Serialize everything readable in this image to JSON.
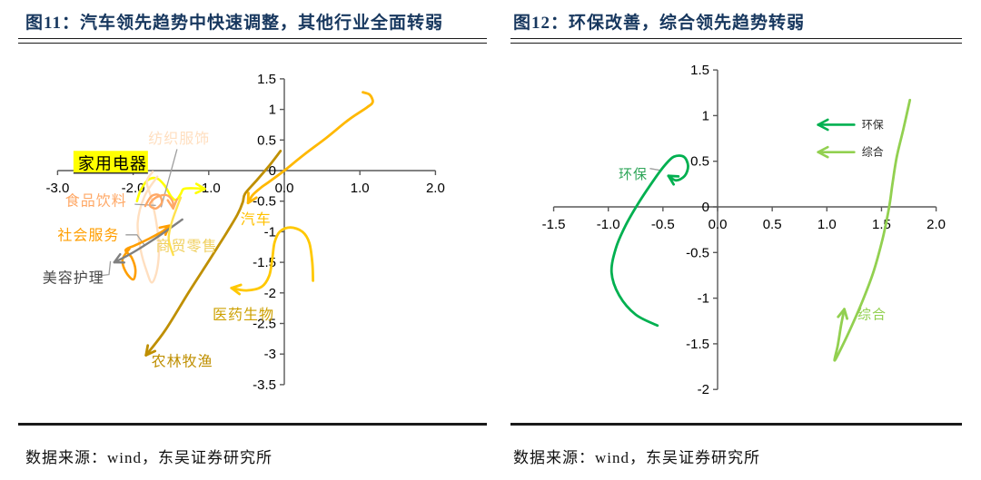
{
  "panels": [
    {
      "title": "图11：汽车领先趋势中快速调整，其他行业全面转弱",
      "source_note": "数据来源：wind，东吴证券研究所"
    },
    {
      "title": "图12：环保改善，综合领先趋势转弱",
      "source_note": "数据来源：wind，东吴证券研究所"
    }
  ],
  "chart_data": [
    {
      "type": "line",
      "title": "图11：汽车领先趋势中快速调整，其他行业全面转弱",
      "xlabel": "",
      "ylabel": "",
      "xlim": [
        -3.0,
        2.0
      ],
      "ylim": [
        -3.5,
        1.5
      ],
      "grid": false,
      "xtick_vals": [
        -3,
        -2,
        -1,
        0,
        1,
        2
      ],
      "xtick_labels": [
        "-3.0",
        "-2.0",
        "-1.0",
        "0.0",
        "1.0",
        "2.0"
      ],
      "ytick_vals": [
        1.5,
        1,
        0.5,
        0,
        -0.5,
        -1,
        -1.5,
        -2,
        -2.5,
        -3,
        -3.5
      ],
      "ytick_labels": [
        "1.5",
        "1",
        "0.5",
        "0",
        "-0.5",
        "-1",
        "-1.5",
        "-2",
        "-2.5",
        "-3",
        "-3.5"
      ],
      "series": [
        {
          "name": "汽车",
          "color": "#FFB800",
          "width": 2.8,
          "arrow": true,
          "points": [
            [
              1.04,
              1.28
            ],
            [
              1.13,
              1.24
            ],
            [
              1.17,
              1.12
            ],
            [
              1.09,
              1.03
            ],
            [
              0.85,
              0.83
            ],
            [
              0.55,
              0.53
            ],
            [
              0.25,
              0.25
            ],
            [
              0.0,
              0.0
            ],
            [
              -0.22,
              -0.2
            ],
            [
              -0.3,
              -0.27
            ],
            [
              -0.42,
              -0.4
            ],
            [
              -0.48,
              -0.53
            ]
          ],
          "label": {
            "text": "汽车",
            "x": -0.58,
            "y": -0.8,
            "color": "#FFC000",
            "size": 16
          }
        },
        {
          "name": "农林牧渔",
          "color": "#BF8F00",
          "width": 2.8,
          "arrow": true,
          "points": [
            [
              -0.05,
              0.32
            ],
            [
              -0.2,
              0.08
            ],
            [
              -0.38,
              -0.18
            ],
            [
              -0.52,
              -0.38
            ],
            [
              -0.55,
              -0.52
            ],
            [
              -0.62,
              -0.72
            ],
            [
              -0.78,
              -1.05
            ],
            [
              -1.0,
              -1.48
            ],
            [
              -1.28,
              -2.02
            ],
            [
              -1.58,
              -2.62
            ],
            [
              -1.83,
              -3.02
            ]
          ],
          "label": {
            "text": "农林牧渔",
            "x": -1.76,
            "y": -3.12,
            "color": "#BF8F00",
            "size": 16
          }
        },
        {
          "name": "医药生物",
          "color": "#FFC800",
          "width": 2.8,
          "arrow": true,
          "points": [
            [
              0.38,
              -1.8
            ],
            [
              0.37,
              -1.5
            ],
            [
              0.33,
              -1.18
            ],
            [
              0.24,
              -1.0
            ],
            [
              0.08,
              -0.93
            ],
            [
              -0.06,
              -1.0
            ],
            [
              -0.13,
              -1.18
            ],
            [
              -0.16,
              -1.45
            ],
            [
              -0.2,
              -1.72
            ],
            [
              -0.3,
              -1.9
            ],
            [
              -0.5,
              -1.96
            ],
            [
              -0.7,
              -1.92
            ]
          ],
          "label": {
            "text": "医药生物",
            "x": -0.95,
            "y": -2.36,
            "color": "#CDA000",
            "size": 16
          }
        },
        {
          "name": "家用电器",
          "color": "#FFFF00",
          "width": 2.6,
          "arrow": true,
          "points": [
            [
              -1.95,
              -0.5
            ],
            [
              -1.9,
              -0.32
            ],
            [
              -1.8,
              -0.15
            ],
            [
              -1.68,
              -0.13
            ],
            [
              -1.58,
              -0.25
            ],
            [
              -1.5,
              -0.42
            ],
            [
              -1.43,
              -0.48
            ],
            [
              -1.37,
              -0.38
            ],
            [
              -1.33,
              -0.3
            ],
            [
              -1.2,
              -0.29
            ],
            [
              -1.05,
              -0.3
            ]
          ],
          "label": {
            "text": "家用电器",
            "x": -2.73,
            "y": 0.1,
            "color": "#000000",
            "size": 18,
            "bg": "#FFFF00",
            "underline": true
          }
        },
        {
          "name": "纺织服饰",
          "color": "#FFDFC0",
          "width": 2.4,
          "arrow": false,
          "points": [
            [
              -1.68,
              -0.1
            ],
            [
              -1.85,
              -0.42
            ],
            [
              -1.94,
              -0.85
            ],
            [
              -1.9,
              -1.3
            ],
            [
              -1.82,
              -1.65
            ],
            [
              -1.75,
              -1.83
            ],
            [
              -1.68,
              -1.6
            ],
            [
              -1.66,
              -1.2
            ],
            [
              -1.7,
              -0.8
            ],
            [
              -1.76,
              -0.45
            ],
            [
              -1.82,
              -0.18
            ],
            [
              -1.74,
              -0.02
            ]
          ],
          "label": {
            "text": "纺织服饰",
            "x": -1.8,
            "y": 0.52,
            "color": "#FFDFC0",
            "size": 16,
            "leader": [
              [
                -1.42,
                0.35
              ],
              [
                -1.63,
                -0.6
              ]
            ]
          }
        },
        {
          "name": "食品饮料",
          "color": "#FFA866",
          "width": 2.4,
          "arrow": true,
          "points": [
            [
              -1.84,
              -0.58
            ],
            [
              -1.76,
              -0.42
            ],
            [
              -1.66,
              -0.4
            ],
            [
              -1.62,
              -0.52
            ],
            [
              -1.7,
              -0.62
            ],
            [
              -1.78,
              -0.56
            ],
            [
              -1.7,
              -0.44
            ],
            [
              -1.56,
              -0.4
            ],
            [
              -1.48,
              -0.5
            ],
            [
              -1.47,
              -0.62
            ]
          ],
          "label": {
            "text": "食品饮料",
            "x": -2.9,
            "y": -0.5,
            "color": "#FFA866",
            "size": 16,
            "leader": [
              [
                -1.98,
                -0.55
              ],
              [
                -1.7,
                -0.57
              ]
            ]
          }
        },
        {
          "name": "社会服务",
          "color": "#FF9E00",
          "width": 2.6,
          "arrow": true,
          "points": [
            [
              -2.05,
              -1.28
            ],
            [
              -2.14,
              -1.45
            ],
            [
              -2.1,
              -1.65
            ],
            [
              -2.0,
              -1.78
            ],
            [
              -1.97,
              -1.62
            ],
            [
              -2.02,
              -1.42
            ],
            [
              -2.1,
              -1.3
            ],
            [
              -1.97,
              -1.22
            ],
            [
              -1.8,
              -1.12
            ],
            [
              -1.62,
              -1.0
            ],
            [
              -1.52,
              -0.9
            ]
          ],
          "label": {
            "text": "社会服务",
            "x": -3.0,
            "y": -1.06,
            "color": "#FF9E00",
            "size": 16,
            "leader": [
              [
                -2.1,
                -1.05
              ],
              [
                -1.95,
                -1.05
              ],
              [
                -1.85,
                -1.22
              ]
            ]
          }
        },
        {
          "name": "美容护理",
          "color": "#808080",
          "width": 2.4,
          "arrow": true,
          "points": [
            [
              -1.35,
              -0.8
            ],
            [
              -1.52,
              -0.95
            ],
            [
              -1.72,
              -1.12
            ],
            [
              -1.95,
              -1.3
            ],
            [
              -2.12,
              -1.42
            ],
            [
              -2.25,
              -1.5
            ]
          ],
          "label": {
            "text": "美容护理",
            "x": -3.2,
            "y": -1.76,
            "color": "#4a4a4a",
            "size": 16,
            "leader": [
              [
                -2.45,
                -1.72
              ],
              [
                -2.32,
                -1.7
              ],
              [
                -2.3,
                -1.48
              ]
            ]
          }
        },
        {
          "name": "商贸零售",
          "color": "#FFE14D",
          "width": 2.4,
          "arrow": false,
          "points": [
            [
              -1.47,
              -1.38
            ],
            [
              -1.53,
              -1.12
            ],
            [
              -1.49,
              -0.85
            ],
            [
              -1.42,
              -0.6
            ],
            [
              -1.37,
              -0.44
            ]
          ],
          "label": {
            "text": "商贸零售",
            "x": -1.7,
            "y": -1.24,
            "color": "#F0D060",
            "size": 16
          }
        }
      ]
    },
    {
      "type": "line",
      "title": "图12：环保改善，综合领先趋势转弱",
      "xlabel": "",
      "ylabel": "",
      "xlim": [
        -1.5,
        2.0
      ],
      "ylim": [
        -2.0,
        1.5
      ],
      "grid": false,
      "xtick_vals": [
        -1.5,
        -1.0,
        -0.5,
        0,
        0.5,
        1.0,
        1.5,
        2.0
      ],
      "xtick_labels": [
        "-1.5",
        "-1.0",
        "-0.5",
        "0.0",
        "0.5",
        "1.0",
        "1.5",
        "2.0"
      ],
      "ytick_vals": [
        1.5,
        1,
        0.5,
        0,
        -0.5,
        -1,
        -1.5,
        -2
      ],
      "ytick_labels": [
        "1.5",
        "1",
        "0.5",
        "0",
        "-0.5",
        "-1",
        "-1.5",
        "-2"
      ],
      "series": [
        {
          "name": "环保",
          "color": "#00B050",
          "width": 2.8,
          "arrow": true,
          "points": [
            [
              -0.55,
              -1.3
            ],
            [
              -0.75,
              -1.18
            ],
            [
              -0.9,
              -0.97
            ],
            [
              -0.97,
              -0.72
            ],
            [
              -0.93,
              -0.45
            ],
            [
              -0.84,
              -0.2
            ],
            [
              -0.72,
              0.05
            ],
            [
              -0.58,
              0.3
            ],
            [
              -0.48,
              0.46
            ],
            [
              -0.4,
              0.55
            ],
            [
              -0.31,
              0.55
            ],
            [
              -0.27,
              0.45
            ],
            [
              -0.3,
              0.34
            ],
            [
              -0.38,
              0.29
            ],
            [
              -0.45,
              0.34
            ]
          ],
          "label": {
            "text": "环保",
            "x": -0.64,
            "y": 0.36,
            "color": "#2EA558",
            "size": 15,
            "anchor": "end",
            "leader": [
              [
                -0.62,
                0.42
              ],
              [
                -0.52,
                0.4
              ]
            ]
          }
        },
        {
          "name": "综合",
          "color": "#92D050",
          "width": 2.8,
          "arrow": true,
          "points": [
            [
              1.76,
              1.17
            ],
            [
              1.7,
              0.85
            ],
            [
              1.64,
              0.55
            ],
            [
              1.6,
              0.25
            ],
            [
              1.57,
              0.0
            ],
            [
              1.51,
              -0.35
            ],
            [
              1.43,
              -0.7
            ],
            [
              1.33,
              -1.02
            ],
            [
              1.21,
              -1.35
            ],
            [
              1.11,
              -1.6
            ],
            [
              1.07,
              -1.68
            ],
            [
              1.1,
              -1.52
            ],
            [
              1.13,
              -1.3
            ],
            [
              1.16,
              -1.12
            ]
          ],
          "label": {
            "text": "综合",
            "x": 1.28,
            "y": -1.18,
            "color": "#92D050",
            "size": 15
          }
        }
      ],
      "legend": {
        "position": "upper-right",
        "x1": 0.92,
        "x2": 1.25,
        "text_x": 1.32,
        "ys": [
          0.9,
          0.6
        ],
        "items": [
          {
            "label": "环保",
            "color": "#00B050"
          },
          {
            "label": "综合",
            "color": "#92D050"
          }
        ]
      }
    }
  ]
}
